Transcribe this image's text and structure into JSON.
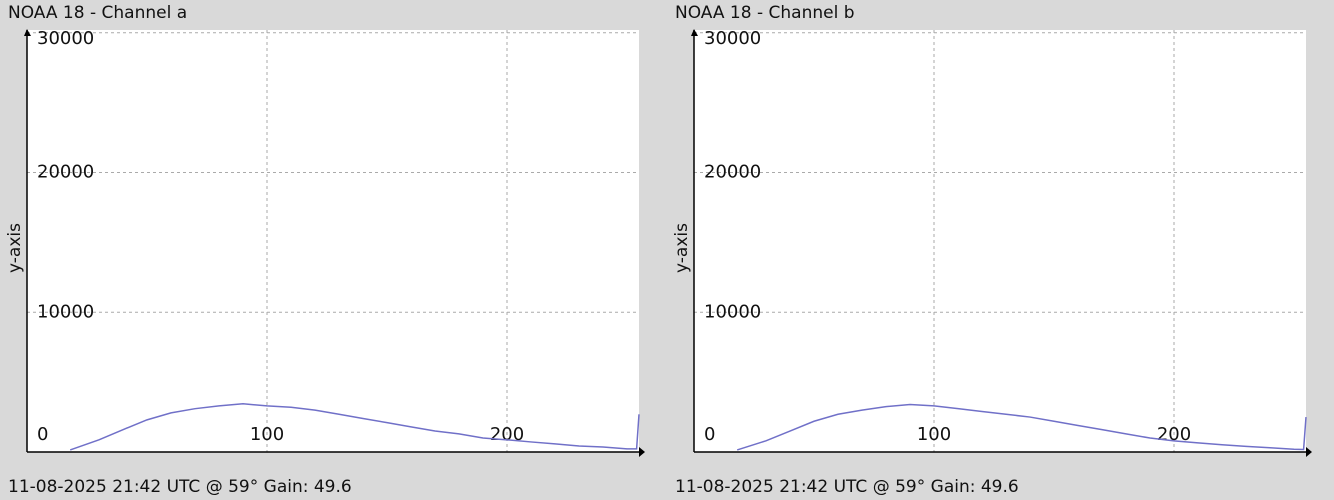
{
  "chart_data": [
    {
      "type": "line",
      "title": "NOAA 18 - Channel a",
      "ylabel": "y-axis",
      "caption": "11-08-2025 21:42 UTC @ 59° Gain: 49.6",
      "x": [
        18,
        30,
        40,
        50,
        60,
        70,
        80,
        90,
        100,
        110,
        120,
        130,
        140,
        150,
        160,
        170,
        180,
        190,
        200,
        210,
        220,
        230,
        240,
        250,
        254,
        255
      ],
      "values": [
        150,
        870,
        1600,
        2300,
        2800,
        3100,
        3300,
        3450,
        3300,
        3200,
        3000,
        2700,
        2400,
        2100,
        1800,
        1500,
        1300,
        1000,
        870,
        720,
        580,
        430,
        360,
        220,
        220,
        2700
      ],
      "color": "#7070c8",
      "xlim": [
        0,
        255
      ],
      "xticks": [
        100,
        200
      ],
      "ylim": [
        0,
        30200
      ],
      "yticks": [
        0,
        10000,
        20000,
        30000
      ],
      "grid": true
    },
    {
      "type": "line",
      "title": "NOAA 18 - Channel b",
      "ylabel": "y-axis",
      "caption": "11-08-2025 21:42 UTC @ 59° Gain: 49.6",
      "x": [
        18,
        30,
        40,
        50,
        60,
        70,
        80,
        90,
        100,
        110,
        120,
        130,
        140,
        150,
        160,
        170,
        180,
        190,
        200,
        210,
        220,
        230,
        240,
        250,
        254,
        255
      ],
      "values": [
        150,
        800,
        1500,
        2200,
        2700,
        3000,
        3250,
        3400,
        3300,
        3100,
        2900,
        2700,
        2500,
        2200,
        1900,
        1600,
        1300,
        1000,
        800,
        650,
        520,
        400,
        300,
        200,
        180,
        2500
      ],
      "color": "#7070c8",
      "xlim": [
        0,
        255
      ],
      "xticks": [
        100,
        200
      ],
      "ylim": [
        0,
        30200
      ],
      "yticks": [
        0,
        10000,
        20000,
        30000
      ],
      "grid": true
    }
  ]
}
